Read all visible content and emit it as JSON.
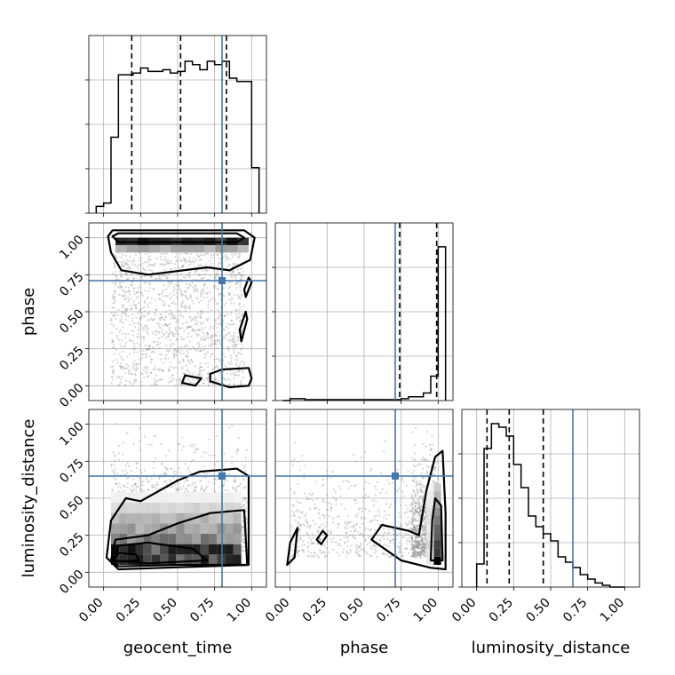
{
  "chart_data": {
    "type": "corner",
    "parameters": [
      "geocent_time",
      "phase",
      "luminosity_distance"
    ],
    "axis_labels": [
      "geocent_time",
      "phase",
      "luminosity_distance"
    ],
    "ticks": [
      0.0,
      0.25,
      0.5,
      0.75,
      1.0
    ],
    "tick_labels": [
      "0.00",
      "0.25",
      "0.50",
      "0.75",
      "1.00"
    ],
    "range": [
      -0.1,
      1.1
    ],
    "grid": true,
    "truth_color": "#4477aa",
    "truths": {
      "geocent_time": 0.8,
      "phase": 0.71,
      "luminosity_distance": 0.65
    },
    "quantiles": {
      "geocent_time": [
        0.19,
        0.52,
        0.83
      ],
      "phase": [
        0.74,
        0.99
      ],
      "luminosity_distance": [
        0.07,
        0.22,
        0.45
      ]
    },
    "histograms": {
      "geocent_time": {
        "bin_edges": [
          -0.05,
          0.0,
          0.05,
          0.1,
          0.15,
          0.2,
          0.25,
          0.3,
          0.35,
          0.4,
          0.45,
          0.5,
          0.55,
          0.6,
          0.65,
          0.7,
          0.75,
          0.8,
          0.85,
          0.9,
          0.95,
          1.0,
          1.05
        ],
        "counts": [
          0.04,
          0.06,
          0.45,
          0.82,
          0.82,
          0.83,
          0.86,
          0.84,
          0.84,
          0.85,
          0.83,
          0.84,
          0.9,
          0.88,
          0.85,
          0.9,
          0.88,
          0.9,
          0.8,
          0.78,
          0.78,
          0.27
        ],
        "max": 1.0
      },
      "phase": {
        "bin_edges": [
          -0.05,
          0.0,
          0.05,
          0.1,
          0.15,
          0.2,
          0.25,
          0.3,
          0.35,
          0.4,
          0.45,
          0.5,
          0.55,
          0.6,
          0.65,
          0.7,
          0.75,
          0.8,
          0.85,
          0.9,
          0.95,
          1.0,
          1.05
        ],
        "counts": [
          0.0,
          0.01,
          0.01,
          0.005,
          0.005,
          0.005,
          0.005,
          0.005,
          0.005,
          0.005,
          0.005,
          0.005,
          0.005,
          0.005,
          0.005,
          0.005,
          0.01,
          0.02,
          0.02,
          0.04,
          0.13,
          0.82
        ],
        "max": 0.9
      },
      "luminosity_distance": {
        "bin_edges": [
          0.0,
          0.05,
          0.1,
          0.15,
          0.2,
          0.25,
          0.3,
          0.35,
          0.4,
          0.45,
          0.5,
          0.55,
          0.6,
          0.65,
          0.7,
          0.75,
          0.8,
          0.85,
          0.9,
          0.95,
          1.0
        ],
        "counts": [
          0.13,
          0.78,
          0.92,
          0.9,
          0.85,
          0.69,
          0.56,
          0.4,
          0.34,
          0.3,
          0.26,
          0.17,
          0.14,
          0.11,
          0.07,
          0.045,
          0.023,
          0.01,
          0.0,
          0.0
        ],
        "max": 0.95
      }
    },
    "scatter_density": {
      "phase_vs_geocent_time": "dense band near phase=1.0 across geocent_time 0.05-0.95, sparse uniform points elsewhere",
      "luminosity_distance_vs_geocent_time": "dense region at luminosity_distance 0.05-0.45, sparse points up to 1.0",
      "luminosity_distance_vs_phase": "dense region at phase near 1.0, luminosity_distance 0.05-0.6"
    }
  }
}
